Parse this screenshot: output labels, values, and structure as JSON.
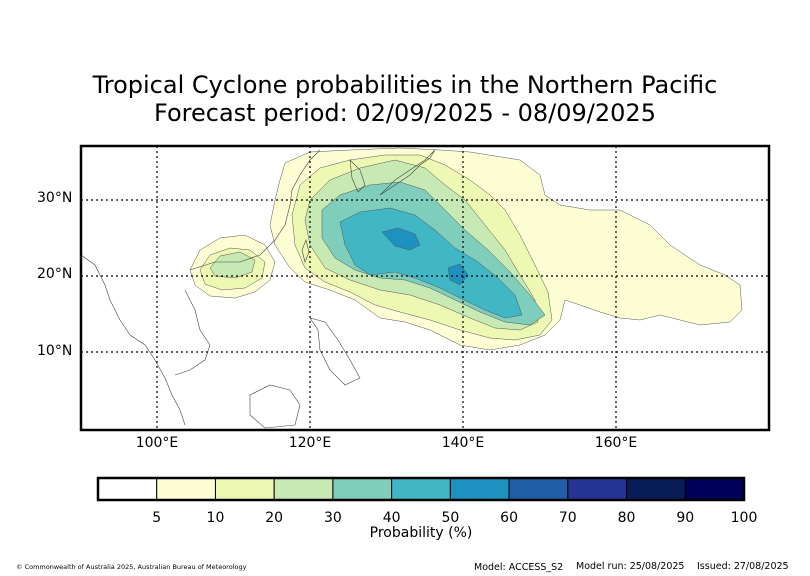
{
  "title": {
    "line1": "Tropical Cyclone probabilities in the Northern Pacific",
    "line2": "Forecast period: 02/09/2025 - 08/09/2025"
  },
  "axes": {
    "lat_labels": [
      "30°N",
      "20°N",
      "10°N"
    ],
    "lon_labels": [
      "100°E",
      "120°E",
      "140°E",
      "160°E"
    ],
    "gridlines": "dotted"
  },
  "colorbar": {
    "title": "Probability (%)",
    "ticks": [
      "5",
      "10",
      "20",
      "30",
      "40",
      "50",
      "60",
      "70",
      "80",
      "90",
      "100"
    ],
    "colors": [
      "#ffffff",
      "#fdfed4",
      "#edf8b2",
      "#c7e9b4",
      "#7fcdbb",
      "#41b6c4",
      "#1d91c0",
      "#225ea8",
      "#253494",
      "#081d58",
      "#00005a"
    ]
  },
  "contour_colors": {
    "level_5": "#fdfed4",
    "level_10": "#edf8b2",
    "level_20": "#c7e9b4",
    "level_30": "#7fcdbb",
    "level_40": "#41b6c4",
    "level_50": "#1d91c0"
  },
  "footer": {
    "copyright": "© Commonwealth of Australia 2025, Australian Bureau of Meteorology",
    "model": "Model: ACCESS_S2",
    "model_run": "Model run: 25/08/2025",
    "issued": "Issued: 27/08/2025"
  }
}
